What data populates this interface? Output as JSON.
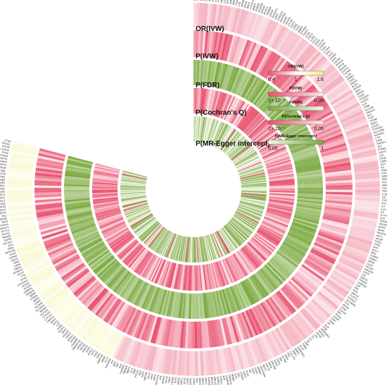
{
  "chart_data": {
    "type": "circular-heatmap",
    "title": "",
    "rings": [
      {
        "name": "OR(IVW)",
        "colors": {
          "low": "#e8506e",
          "mid": "#ffffff",
          "high": "#f3ee8c"
        }
      },
      {
        "name": "P(IVW)",
        "colors": {
          "low": "#e8506e",
          "high": "#fde8ec"
        }
      },
      {
        "name": "P(FDR)",
        "colors": {
          "low": "#7aa83e",
          "high": "#f4f8ec"
        }
      },
      {
        "name": "P(Cochran's Q)",
        "colors": {
          "low": "#e8506e",
          "high": "#fde8ec"
        }
      },
      {
        "name": "P(MR-Egger intercept)",
        "colors": {
          "low": "#f4f8ec",
          "high": "#7aa83e"
        }
      }
    ],
    "legends": [
      {
        "title": "OR(IVW)",
        "ticks": [
          "0.4",
          "1",
          "1.6"
        ]
      },
      {
        "title": "P(IVW)",
        "ticks": [
          "1× 10⁻⁵",
          "0.05"
        ]
      },
      {
        "title": "P(FDR)",
        "ticks": []
      },
      {
        "title": "P(Cochran's Q)",
        "ticks": [
          "1× 10⁻⁵",
          "0.05"
        ]
      },
      {
        "title": "P(MR-Egger intercept )",
        "ticks": [
          "0.05",
          "1"
        ]
      }
    ],
    "genes": [
      "FCGR2B",
      "TMPRSS",
      "CBLIF",
      "IRF1",
      "PLA2G12A",
      "PDE6D",
      "ATM1",
      "CALCRL",
      "PSMA4",
      "HEBP1",
      "IL2RA",
      "PTGFRN",
      "GRB10",
      "ABHD17C",
      "CD40",
      "LTB",
      "SIRPB",
      "SNX8",
      "BRD4",
      "CYP2C19",
      "MMP3",
      "PSMD9",
      "SCARB2",
      "GPR35",
      "NT5C3",
      "TNFRSF",
      "CD226",
      "SIGLEC1",
      "IL6ST",
      "CDKN2A",
      "MAP3K8",
      "ICAM1",
      "ATG16L",
      "CTLA4",
      "CHIT1",
      "CD86",
      "TYK2",
      "MMP9",
      "PTPN22",
      "TRAF1",
      "CCR6",
      "STAT4",
      "IL23R",
      "CCL2",
      "NOD2",
      "CLEC7A",
      "CASP8",
      "TLR4",
      "IL17RA",
      "CIITA",
      "LAG3",
      "SH2B3",
      "IRF5",
      "TAGAP",
      "PRKCQ",
      "ZFP36",
      "BACH2",
      "SOCS1",
      "CXCR5",
      "IL12B",
      "LRRK2",
      "TNIP1",
      "ERAP1",
      "IKZF3",
      "RUNX3",
      "JAK2",
      "NFKB1",
      "CD28",
      "PTGER4",
      "FOXP3",
      "IL10",
      "CD80",
      "SLC2A9",
      "UBE2L3",
      "BLK",
      "TLR7",
      "ITGAM",
      "IRAK1",
      "CD247",
      "FCGR3A",
      "HLA-DRB",
      "ADAM10",
      "IL7R",
      "CD58",
      "TNFSF4",
      "TEC",
      "PTPRC",
      "ZAP70",
      "LCK",
      "CD3E",
      "CD8A",
      "CD4",
      "IL2",
      "IFNG",
      "CXCL10",
      "GZMB",
      "PRF1",
      "CD19",
      "MS4A1",
      "CD79A",
      "TNF",
      "IL1B",
      "IL6",
      "CXCL8",
      "CCL5",
      "IL4",
      "IL13",
      "IL5",
      "IL17A",
      "IL22",
      "TGFB1",
      "VEGFA",
      "EGFR",
      "KRAS",
      "PIK3CA",
      "AKT1",
      "MTOR",
      "PTEN",
      "TP53",
      "MYC",
      "BCL2",
      "BAX",
      "CASP3",
      "PARP1",
      "APOE",
      "LDLR",
      "PCSK9",
      "HMGCR",
      "CETP",
      "LPL",
      "ABCA1",
      "PPARG",
      "ADIPOQ",
      "LEP",
      "INS",
      "GCK",
      "HNF1A",
      "TCF7L2",
      "KCNJ11",
      "SLC30A8",
      "FTO",
      "MC4R",
      "GIPR",
      "GLP1R",
      "NPY",
      "POMC",
      "AGRP",
      "CRP",
      "SAA1",
      "HP",
      "ALB",
      "FGB",
      "SERPINA1",
      "APOA1",
      "APOB",
      "LPA",
      "F2",
      "F5",
      "F8",
      "VWF",
      "THBD",
      "PLAT",
      "SERPINE1",
      "MMP2",
      "TIMP1",
      "COL1A1",
      "FN1",
      "SPP1",
      "ACTA2",
      "VIM",
      "CDH1",
      "CDH2",
      "EPCAM",
      "KRT8",
      "KRT18",
      "MUC1",
      "CEACAM5",
      "ERBB2",
      "ESR1",
      "PGR",
      "AR",
      "KLK3",
      "CDK4",
      "CCND1",
      "RB1",
      "E2F1",
      "MDM2",
      "CDKN1A",
      "GADD45A",
      "ATR",
      "CHEK1",
      "CHEK2",
      "BRCA1",
      "BRCA2",
      "RAD51",
      "XRCC1",
      "MLH1",
      "MSH2",
      "APC",
      "CTNNB1",
      "AXIN2",
      "LGR5",
      "SOX2",
      "POU5F1",
      "NANOG",
      "KLF4",
      "LIN28A",
      "TERT",
      "HIF1A",
      "EPAS1",
      "VHL",
      "NOTCH1",
      "HES1",
      "JAG1",
      "DLL4",
      "WNT3A",
      "FZD7",
      "SHH",
      "PTCH1",
      "SMO",
      "GLI1",
      "BMP4",
      "SMAD4",
      "TGFBR2",
      "ALK",
      "RET",
      "MET",
      "KIT",
      "PDGFRA",
      "FLT3",
      "NPM1",
      "DNMT3A",
      "IDH1",
      "IDH2",
      "TET2",
      "ASXL1",
      "EZH2",
      "KMT2A",
      "SETD2",
      "ARID1A",
      "SMARCA4",
      "CREBBP",
      "EP300",
      "HDAC1",
      "SIRT1",
      "FOXO3",
      "NRF2",
      "KEAP1",
      "SOD2",
      "CAT",
      "GPX1",
      "NQO1",
      "HMOX1",
      "CYP1A1",
      "CYP3A4",
      "UGT1A1",
      "ABCB1",
      "SLC22A1",
      "SLC6A4",
      "COMT",
      "DRD2",
      "HTR2A",
      "BDNF",
      "GRIN2B",
      "GABRA1",
      "SCN1A",
      "KCNQ1",
      "CACNA1C",
      "RYR2",
      "TTN",
      "MYH7",
      "MYBPC3",
      "TNNT2",
      "LMNA",
      "DMD",
      "SGCA",
      "CAPN3",
      "DYSF",
      "NOTCH3",
      "FBN1",
      "ELN",
      "COL3A1",
      "TGFB2",
      "SMAD3",
      "MYH11",
      "ACTC1",
      "NKX2-5",
      "GATA4",
      "TBX5",
      "HAND2",
      "ISL1",
      "MEF2C",
      "S100A12",
      "LAT52",
      "CD52",
      "GAL3",
      "ADAM12",
      "SIGLEC3",
      "SLC22A5",
      "SAA2",
      "THNSL2",
      "FKBP2",
      "ITGB2",
      "PVRL",
      "STK17B",
      "CD5L",
      "APOM",
      "ANGPT2",
      "TNFAIP6",
      "GDF15",
      "CD163",
      "FCN2",
      "LILRA2",
      "IGF1R",
      "PDCD1",
      "CTSS"
    ],
    "angle_start_deg": -90,
    "angle_end_deg": 195
  }
}
